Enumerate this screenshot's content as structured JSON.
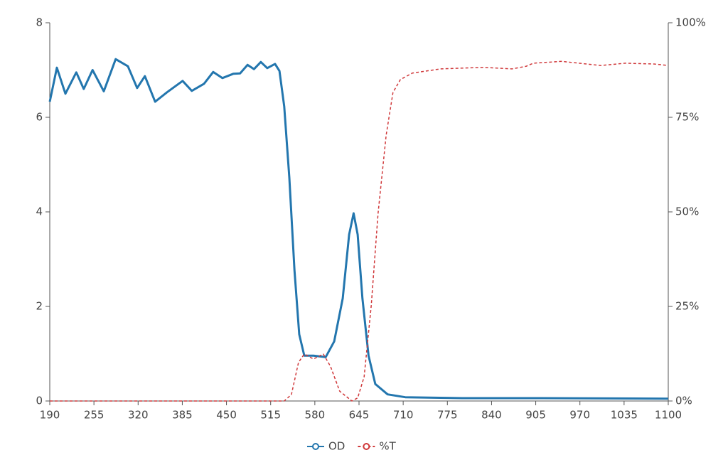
{
  "chart_data": {
    "type": "line",
    "xlim": [
      190,
      1100
    ],
    "xticks": [
      190,
      255,
      320,
      385,
      450,
      515,
      580,
      645,
      710,
      775,
      840,
      905,
      970,
      1035,
      1100
    ],
    "ylim": [
      0,
      8
    ],
    "yticks": [
      0,
      2,
      4,
      6,
      8
    ],
    "y2lim": [
      0,
      100
    ],
    "y2ticks": [
      {
        "value": 0,
        "label": "0%"
      },
      {
        "value": 25,
        "label": "25%"
      },
      {
        "value": 50,
        "label": "50%"
      },
      {
        "value": 75,
        "label": "75%"
      },
      {
        "value": 100,
        "label": "100%"
      }
    ],
    "legend": "bottom",
    "series": [
      {
        "name": "OD",
        "color": "#2376ae",
        "line_style": "solid",
        "x": [
          190,
          200.5,
          213,
          229,
          240,
          253,
          269.5,
          287,
          305,
          318.5,
          330,
          345,
          362.5,
          385.5,
          399,
          417,
          430.5,
          444,
          460,
          470,
          481,
          490.5,
          500.5,
          510,
          521.5,
          528,
          535,
          542.5,
          550,
          557,
          564.5,
          578,
          596,
          608.5,
          621,
          630.5,
          637,
          643,
          650,
          659,
          669,
          687,
          713,
          797,
          901,
          1100
        ],
        "values": [
          6.33,
          7.05,
          6.5,
          6.95,
          6.6,
          7.0,
          6.55,
          7.23,
          7.08,
          6.62,
          6.87,
          6.33,
          6.53,
          6.77,
          6.56,
          6.71,
          6.96,
          6.83,
          6.92,
          6.93,
          7.11,
          7.02,
          7.17,
          7.04,
          7.13,
          6.98,
          6.23,
          4.72,
          2.77,
          1.41,
          0.96,
          0.96,
          0.93,
          1.26,
          2.17,
          3.52,
          3.97,
          3.52,
          2.17,
          0.96,
          0.36,
          0.14,
          0.08,
          0.06,
          0.06,
          0.05
        ]
      },
      {
        "name": "%T",
        "color": "#d0393b",
        "line_style": "dashed",
        "axis": "y2",
        "x": [
          190,
          535,
          545.5,
          556,
          564.5,
          578,
          592.5,
          603,
          616.5,
          634.5,
          643,
          652.5,
          663,
          673,
          685,
          695,
          706,
          723.5,
          765,
          828,
          870,
          891,
          901.5,
          943,
          1000.5,
          1037,
          1079,
          1100
        ],
        "values": [
          0,
          0,
          1.7,
          10.2,
          12.4,
          11.1,
          12.4,
          9.2,
          2.6,
          0,
          0.8,
          6.4,
          25.2,
          49.6,
          70.3,
          81.6,
          85,
          86.7,
          87.8,
          88.2,
          87.8,
          88.5,
          89.3,
          89.8,
          88.7,
          89.3,
          89.1,
          88.7
        ]
      }
    ]
  }
}
